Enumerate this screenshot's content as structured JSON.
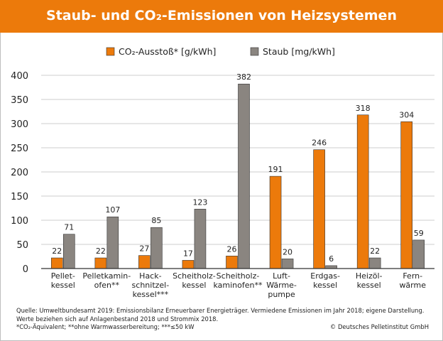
{
  "colors": {
    "title_bg": "#ec7a0b",
    "co2": "#ec7a0b",
    "staub": "#8a8580",
    "bar_stroke": "#333333",
    "grid": "#cccccc"
  },
  "header": {
    "title": "Staub- und CO₂-Emissionen von Heizsystemen"
  },
  "chart_data": {
    "type": "bar",
    "title": "",
    "legend_position": "top-center",
    "grid": true,
    "ylim": [
      0,
      400
    ],
    "yticks": [
      0,
      50,
      100,
      150,
      200,
      250,
      300,
      350,
      400
    ],
    "categories": [
      [
        "Pellet-",
        "kessel"
      ],
      [
        "Pelletkamin-",
        "ofen**"
      ],
      [
        "Hack-",
        "schnitzel-",
        "kessel***"
      ],
      [
        "Scheitholz-",
        "kessel"
      ],
      [
        "Scheitholz-",
        "kaminofen**"
      ],
      [
        "Luft-",
        "Wärme-",
        "pumpe"
      ],
      [
        "Erdgas-",
        "kessel"
      ],
      [
        "Heizöl-",
        "kessel"
      ],
      [
        "Fern-",
        "wärme"
      ]
    ],
    "series": [
      {
        "name": "CO₂-Ausstoß* [g/kWh]",
        "values": [
          22,
          22,
          27,
          17,
          26,
          191,
          246,
          318,
          304
        ]
      },
      {
        "name": "Staub [mg/kWh]",
        "values": [
          71,
          107,
          85,
          123,
          382,
          20,
          6,
          22,
          59
        ]
      }
    ]
  },
  "footer": {
    "notes": [
      "Quelle: Umweltbundesamt 2019: Emissionsbilanz Erneuerbarer Energieträger. Vermiedene Emissionen im Jahr 2018; eigene Darstellung.",
      "Werte beziehen sich auf Anlagenbestand 2018 und Strommix 2018.",
      "*CO₂-Äquivalent; **ohne Warmwasserbereitung; ***≤50 kW"
    ],
    "copyright": "© Deutsches Pelletinstitut GmbH"
  }
}
